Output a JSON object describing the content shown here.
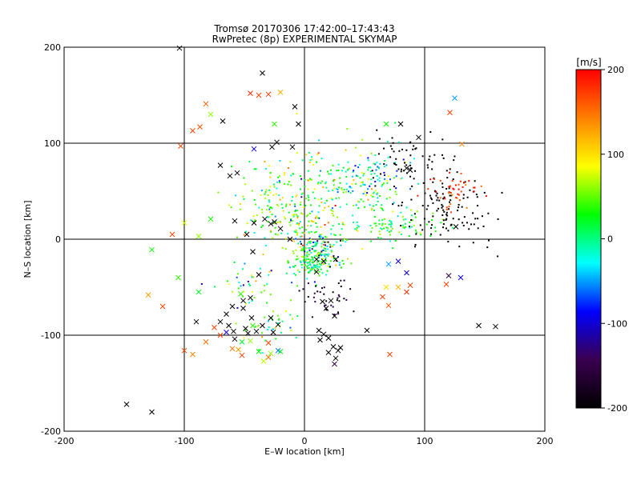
{
  "chart_data": {
    "type": "scatter",
    "title_line1": "Tromsø 20170306 17:42:00–17:43:43",
    "title_line2": "RwPretec (8p) EXPERIMENTAL SKYMAP",
    "xlabel": "E–W location [km]",
    "ylabel": "N–S location [km]",
    "xlim": [
      -200,
      200
    ],
    "ylim": [
      -200,
      200
    ],
    "xticks": [
      -200,
      -100,
      0,
      100,
      200
    ],
    "yticks": [
      -200,
      -100,
      0,
      100,
      200
    ],
    "grid": true,
    "colorbar": {
      "label": "[m/s]",
      "range": [
        -200,
        200
      ],
      "ticks": [
        200,
        100,
        0,
        -100,
        -200
      ],
      "colors": [
        "#000000",
        "#3a0050",
        "#0000ff",
        "#00ffff",
        "#00ff00",
        "#ffff00",
        "#ff8000",
        "#ff0000"
      ]
    },
    "markers": {
      "cross": "large x — single detections",
      "dot": "small point — dense detections"
    },
    "crosses": [
      {
        "x": -104,
        "y": 199,
        "v": -200
      },
      {
        "x": -35,
        "y": 173,
        "v": -200
      },
      {
        "x": -45,
        "y": 152,
        "v": 180
      },
      {
        "x": -38,
        "y": 150,
        "v": 170
      },
      {
        "x": -30,
        "y": 151,
        "v": 175
      },
      {
        "x": -20,
        "y": 153,
        "v": 120
      },
      {
        "x": -103,
        "y": 97,
        "v": 170
      },
      {
        "x": -93,
        "y": 113,
        "v": 170
      },
      {
        "x": -87,
        "y": 117,
        "v": 165
      },
      {
        "x": -82,
        "y": 141,
        "v": 160
      },
      {
        "x": -78,
        "y": 130,
        "v": 60
      },
      {
        "x": -68,
        "y": 123,
        "v": -200
      },
      {
        "x": -25,
        "y": 120,
        "v": 40
      },
      {
        "x": -8,
        "y": 138,
        "v": -200
      },
      {
        "x": -5,
        "y": 120,
        "v": -200
      },
      {
        "x": 68,
        "y": 120,
        "v": 30
      },
      {
        "x": 80,
        "y": 120,
        "v": -200
      },
      {
        "x": 95,
        "y": 106,
        "v": -200
      },
      {
        "x": 125,
        "y": 147,
        "v": -50
      },
      {
        "x": 121,
        "y": 132,
        "v": 170
      },
      {
        "x": 131,
        "y": 99,
        "v": 140
      },
      {
        "x": -42,
        "y": 94,
        "v": -100
      },
      {
        "x": -27,
        "y": 96,
        "v": -200
      },
      {
        "x": -23,
        "y": 101,
        "v": -200
      },
      {
        "x": -10,
        "y": 96,
        "v": -200
      },
      {
        "x": -70,
        "y": 77,
        "v": -200
      },
      {
        "x": -62,
        "y": 66,
        "v": -200
      },
      {
        "x": -56,
        "y": 69,
        "v": -200
      },
      {
        "x": 85,
        "y": 74,
        "v": -200
      },
      {
        "x": 88,
        "y": 72,
        "v": -200
      },
      {
        "x": -100,
        "y": 17,
        "v": 80
      },
      {
        "x": -88,
        "y": 3,
        "v": 60
      },
      {
        "x": -78,
        "y": 21,
        "v": 30
      },
      {
        "x": -58,
        "y": 19,
        "v": -200
      },
      {
        "x": -48,
        "y": 5,
        "v": -200
      },
      {
        "x": -42,
        "y": 17,
        "v": -200
      },
      {
        "x": -33,
        "y": 21,
        "v": -200
      },
      {
        "x": -28,
        "y": 16,
        "v": -200
      },
      {
        "x": -25,
        "y": 18,
        "v": -200
      },
      {
        "x": -20,
        "y": 11,
        "v": -200
      },
      {
        "x": -12,
        "y": 0,
        "v": -200
      },
      {
        "x": -110,
        "y": 5,
        "v": 170
      },
      {
        "x": -127,
        "y": -11,
        "v": 30
      },
      {
        "x": -43,
        "y": -13,
        "v": -200
      },
      {
        "x": -38,
        "y": -37,
        "v": -200
      },
      {
        "x": 10,
        "y": -34,
        "v": -200
      },
      {
        "x": 10,
        "y": -21,
        "v": -200
      },
      {
        "x": 16,
        "y": -23,
        "v": -200
      },
      {
        "x": 26,
        "y": -21,
        "v": -200
      },
      {
        "x": 70,
        "y": -26,
        "v": -50
      },
      {
        "x": 78,
        "y": -23,
        "v": -100
      },
      {
        "x": 85,
        "y": -35,
        "v": -100
      },
      {
        "x": 120,
        "y": -38,
        "v": -150
      },
      {
        "x": 130,
        "y": -40,
        "v": -100
      },
      {
        "x": 118,
        "y": -47,
        "v": 170
      },
      {
        "x": -130,
        "y": -58,
        "v": 130
      },
      {
        "x": -118,
        "y": -70,
        "v": 170
      },
      {
        "x": -88,
        "y": -55,
        "v": 20
      },
      {
        "x": -53,
        "y": -57,
        "v": 40
      },
      {
        "x": -51,
        "y": -64,
        "v": -200
      },
      {
        "x": -45,
        "y": -61,
        "v": -200
      },
      {
        "x": -51,
        "y": -72,
        "v": -200
      },
      {
        "x": -44,
        "y": -82,
        "v": -200
      },
      {
        "x": -49,
        "y": -93,
        "v": -200
      },
      {
        "x": -47,
        "y": -98,
        "v": -200
      },
      {
        "x": -43,
        "y": -90,
        "v": 40
      },
      {
        "x": -60,
        "y": -70,
        "v": -200
      },
      {
        "x": -65,
        "y": -78,
        "v": -200
      },
      {
        "x": -63,
        "y": -90,
        "v": -200
      },
      {
        "x": -59,
        "y": -96,
        "v": -200
      },
      {
        "x": -70,
        "y": -86,
        "v": -200
      },
      {
        "x": -58,
        "y": -104,
        "v": -200
      },
      {
        "x": -65,
        "y": -97,
        "v": -100
      },
      {
        "x": -90,
        "y": -86,
        "v": -200
      },
      {
        "x": -52,
        "y": -107,
        "v": 20
      },
      {
        "x": -45,
        "y": -106,
        "v": 60
      },
      {
        "x": -38,
        "y": -117,
        "v": 30
      },
      {
        "x": -28,
        "y": -119,
        "v": 60
      },
      {
        "x": -34,
        "y": -127,
        "v": 70
      },
      {
        "x": -30,
        "y": -123,
        "v": 150
      },
      {
        "x": -20,
        "y": -117,
        "v": 30
      },
      {
        "x": -75,
        "y": -92,
        "v": 170
      },
      {
        "x": -70,
        "y": -100,
        "v": 170
      },
      {
        "x": -55,
        "y": -115,
        "v": 130
      },
      {
        "x": -52,
        "y": -121,
        "v": 170
      },
      {
        "x": -60,
        "y": -114,
        "v": 150
      },
      {
        "x": -100,
        "y": -116,
        "v": 170
      },
      {
        "x": -93,
        "y": -120,
        "v": 140
      },
      {
        "x": -82,
        "y": -107,
        "v": 150
      },
      {
        "x": -30,
        "y": -108,
        "v": 170
      },
      {
        "x": -22,
        "y": -116,
        "v": -60
      },
      {
        "x": -40,
        "y": -96,
        "v": -200
      },
      {
        "x": -35,
        "y": -90,
        "v": -200
      },
      {
        "x": -28,
        "y": -82,
        "v": -200
      },
      {
        "x": -26,
        "y": -97,
        "v": -200
      },
      {
        "x": -22,
        "y": -89,
        "v": -200
      },
      {
        "x": 15,
        "y": -65,
        "v": -200
      },
      {
        "x": 18,
        "y": -72,
        "v": -200
      },
      {
        "x": 22,
        "y": -64,
        "v": -200
      },
      {
        "x": 25,
        "y": -80,
        "v": -200
      },
      {
        "x": 12,
        "y": -95,
        "v": -200
      },
      {
        "x": 16,
        "y": -99,
        "v": -200
      },
      {
        "x": 20,
        "y": -103,
        "v": -200
      },
      {
        "x": 13,
        "y": -105,
        "v": -200
      },
      {
        "x": 24,
        "y": -112,
        "v": -200
      },
      {
        "x": 20,
        "y": -118,
        "v": -200
      },
      {
        "x": 26,
        "y": -124,
        "v": -200
      },
      {
        "x": 28,
        "y": -116,
        "v": -200
      },
      {
        "x": 30,
        "y": -113,
        "v": -200
      },
      {
        "x": 25,
        "y": -130,
        "v": -150
      },
      {
        "x": 52,
        "y": -95,
        "v": -200
      },
      {
        "x": 71,
        "y": -120,
        "v": 170
      },
      {
        "x": 78,
        "y": -50,
        "v": 120
      },
      {
        "x": 68,
        "y": -50,
        "v": 100
      },
      {
        "x": 65,
        "y": -60,
        "v": 170
      },
      {
        "x": 70,
        "y": -69,
        "v": 160
      },
      {
        "x": 85,
        "y": -55,
        "v": 180
      },
      {
        "x": 88,
        "y": -48,
        "v": 170
      },
      {
        "x": 126,
        "y": 13,
        "v": -200
      },
      {
        "x": 145,
        "y": -90,
        "v": -200
      },
      {
        "x": 159,
        "y": -91,
        "v": -200
      },
      {
        "x": -148,
        "y": -172,
        "v": -200
      },
      {
        "x": -127,
        "y": -180,
        "v": -200
      },
      {
        "x": -105,
        "y": -40,
        "v": 40
      }
    ],
    "dot_clusters": [
      {
        "cx": 5,
        "cy": -22,
        "sx": 8,
        "sy": 8,
        "n": 140,
        "v": 20,
        "vs": 35
      },
      {
        "cx": 15,
        "cy": -12,
        "sx": 9,
        "sy": 10,
        "n": 60,
        "v": -40,
        "vs": 80
      },
      {
        "cx": 38,
        "cy": 45,
        "sx": 25,
        "sy": 25,
        "n": 160,
        "v": 30,
        "vs": 45
      },
      {
        "cx": 55,
        "cy": 65,
        "sx": 15,
        "sy": 12,
        "n": 70,
        "v": -30,
        "vs": 40
      },
      {
        "cx": -20,
        "cy": 35,
        "sx": 22,
        "sy": 20,
        "n": 120,
        "v": 45,
        "vs": 40
      },
      {
        "cx": 78,
        "cy": 12,
        "sx": 18,
        "sy": 8,
        "n": 70,
        "v": 20,
        "vs": 30
      },
      {
        "cx": 115,
        "cy": 30,
        "sx": 20,
        "sy": 22,
        "n": 120,
        "v": -200,
        "vs": 0
      },
      {
        "cx": 125,
        "cy": 52,
        "sx": 10,
        "sy": 10,
        "n": 45,
        "v": 180,
        "vs": 20
      },
      {
        "cx": 85,
        "cy": 85,
        "sx": 18,
        "sy": 14,
        "n": 55,
        "v": -200,
        "vs": 0
      },
      {
        "cx": -30,
        "cy": -90,
        "sx": 14,
        "sy": 10,
        "n": 40,
        "v": 30,
        "vs": 40
      },
      {
        "cx": 20,
        "cy": -60,
        "sx": 10,
        "sy": 12,
        "n": 40,
        "v": -180,
        "vs": 30
      },
      {
        "cx": 0,
        "cy": 10,
        "sx": 18,
        "sy": 15,
        "n": 90,
        "v": 30,
        "vs": 60
      },
      {
        "cx": -45,
        "cy": -40,
        "sx": 15,
        "sy": 15,
        "n": 40,
        "v": 20,
        "vs": 80
      },
      {
        "cx": -5,
        "cy": 60,
        "sx": 20,
        "sy": 12,
        "n": 55,
        "v": 40,
        "vs": 60
      }
    ]
  }
}
